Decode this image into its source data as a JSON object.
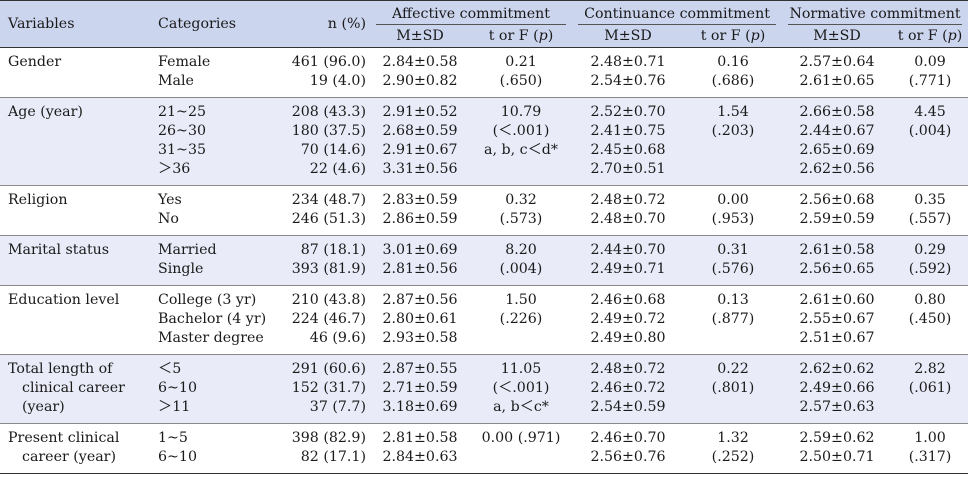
{
  "headers": {
    "variables": "Variables",
    "categories": "Categories",
    "n": "n (%)",
    "affective": "Affective commitment",
    "continuance": "Continuance commitment",
    "normative": "Normative commitment",
    "msd": "M±SD",
    "stat": "t or F (",
    "p": "p",
    "stat_close": ")"
  },
  "rows": [
    {
      "variable": [
        "Gender"
      ],
      "categories": [
        "Female",
        "Male"
      ],
      "n": [
        "461 (96.0)",
        "19 (4.0)"
      ],
      "aff_msd": [
        "2.84±0.58",
        "2.90±0.82"
      ],
      "aff_stat": [
        "0.21",
        "(.650)"
      ],
      "con_msd": [
        "2.48±0.71",
        "2.54±0.76"
      ],
      "con_stat": [
        "0.16",
        "(.686)"
      ],
      "nor_msd": [
        "2.57±0.64",
        "2.61±0.65"
      ],
      "nor_stat": [
        "0.09",
        "(.771)"
      ]
    },
    {
      "variable": [
        "Age (year)"
      ],
      "categories": [
        "21~25",
        "26~30",
        "31~35",
        "＞36"
      ],
      "n": [
        "208 (43.3)",
        "180 (37.5)",
        "70 (14.6)",
        "22 (4.6)"
      ],
      "aff_msd": [
        "2.91±0.52",
        "2.68±0.59",
        "2.91±0.67",
        "3.31±0.56"
      ],
      "aff_stat": [
        "10.79",
        "(＜.001)",
        "a, b, c＜d*"
      ],
      "con_msd": [
        "2.52±0.70",
        "2.41±0.75",
        "2.45±0.68",
        "2.70±0.51"
      ],
      "con_stat": [
        "1.54",
        "(.203)"
      ],
      "nor_msd": [
        "2.66±0.58",
        "2.44±0.67",
        "2.65±0.69",
        "2.62±0.56"
      ],
      "nor_stat": [
        "4.45",
        "(.004)"
      ]
    },
    {
      "variable": [
        "Religion"
      ],
      "categories": [
        "Yes",
        "No"
      ],
      "n": [
        "234 (48.7)",
        "246 (51.3)"
      ],
      "aff_msd": [
        "2.83±0.59",
        "2.86±0.59"
      ],
      "aff_stat": [
        "0.32",
        "(.573)"
      ],
      "con_msd": [
        "2.48±0.72",
        "2.48±0.70"
      ],
      "con_stat": [
        "0.00",
        "(.953)"
      ],
      "nor_msd": [
        "2.56±0.68",
        "2.59±0.59"
      ],
      "nor_stat": [
        "0.35",
        "(.557)"
      ]
    },
    {
      "variable": [
        "Marital status"
      ],
      "categories": [
        "Married",
        "Single"
      ],
      "n": [
        "87 (18.1)",
        "393 (81.9)"
      ],
      "aff_msd": [
        "3.01±0.69",
        "2.81±0.56"
      ],
      "aff_stat": [
        "8.20",
        "(.004)"
      ],
      "con_msd": [
        "2.44±0.70",
        "2.49±0.71"
      ],
      "con_stat": [
        "0.31",
        "(.576)"
      ],
      "nor_msd": [
        "2.61±0.58",
        "2.56±0.65"
      ],
      "nor_stat": [
        "0.29",
        "(.592)"
      ]
    },
    {
      "variable": [
        "Education level"
      ],
      "categories": [
        "College (3 yr)",
        "Bachelor (4 yr)",
        "Master degree"
      ],
      "n": [
        "210 (43.8)",
        "224 (46.7)",
        "46 (9.6)"
      ],
      "aff_msd": [
        "2.87±0.56",
        "2.80±0.61",
        "2.93±0.58"
      ],
      "aff_stat": [
        "1.50",
        "(.226)"
      ],
      "con_msd": [
        "2.46±0.68",
        "2.49±0.72",
        "2.49±0.80"
      ],
      "con_stat": [
        "0.13",
        "(.877)"
      ],
      "nor_msd": [
        "2.61±0.60",
        "2.55±0.67",
        "2.51±0.67"
      ],
      "nor_stat": [
        "0.80",
        "(.450)"
      ]
    },
    {
      "variable": [
        "Total length of",
        "clinical career",
        "(year)"
      ],
      "categories": [
        "＜5",
        "6~10",
        "＞11"
      ],
      "n": [
        "291 (60.6)",
        "152 (31.7)",
        "37 (7.7)"
      ],
      "aff_msd": [
        "2.87±0.55",
        "2.71±0.59",
        "3.18±0.69"
      ],
      "aff_stat": [
        "11.05",
        "(＜.001)",
        "a, b＜c*"
      ],
      "con_msd": [
        "2.48±0.72",
        "2.46±0.72",
        "2.54±0.59"
      ],
      "con_stat": [
        "0.22",
        "(.801)"
      ],
      "nor_msd": [
        "2.62±0.62",
        "2.49±0.66",
        "2.57±0.63"
      ],
      "nor_stat": [
        "2.82",
        "(.061)"
      ]
    },
    {
      "variable": [
        "Present clinical",
        "career (year)"
      ],
      "categories": [
        "1~5",
        "6~10"
      ],
      "n": [
        "398 (82.9)",
        "82 (17.1)"
      ],
      "aff_msd": [
        "2.81±0.58",
        "2.84±0.63"
      ],
      "aff_stat": [
        "0.00 (.971)"
      ],
      "con_msd": [
        "2.46±0.70",
        "2.56±0.76"
      ],
      "con_stat": [
        "1.32",
        "(.252)"
      ],
      "nor_msd": [
        "2.59±0.62",
        "2.50±0.71"
      ],
      "nor_stat": [
        "1.00",
        "(.317)"
      ]
    }
  ]
}
